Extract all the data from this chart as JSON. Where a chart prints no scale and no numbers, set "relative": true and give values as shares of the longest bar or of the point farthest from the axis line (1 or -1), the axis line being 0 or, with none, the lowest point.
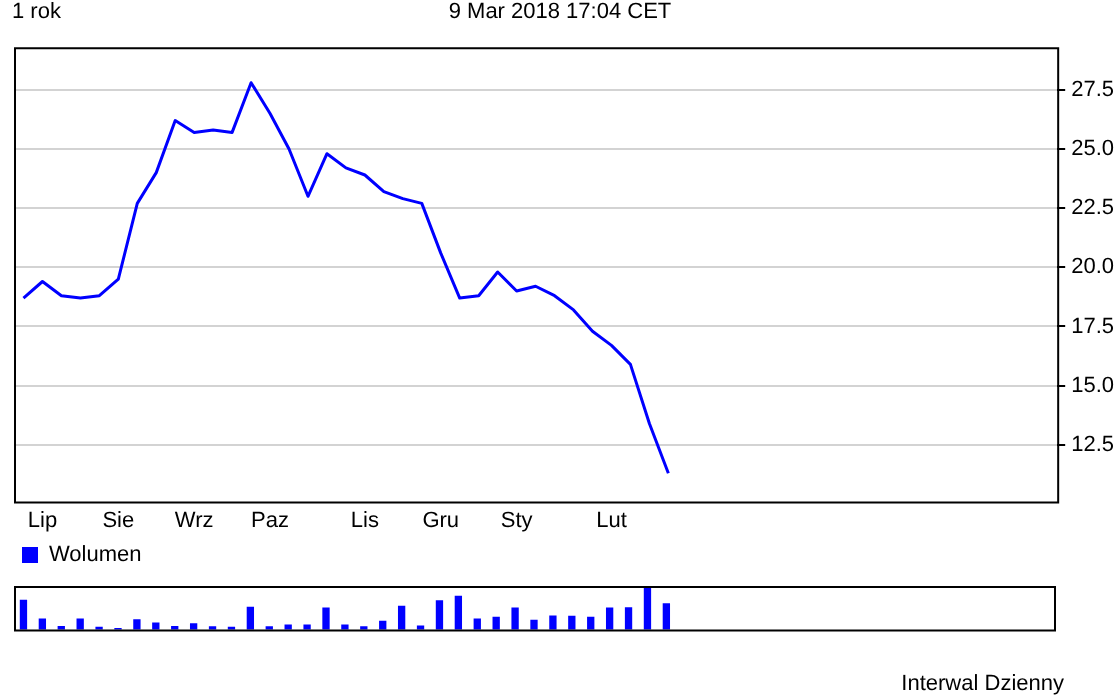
{
  "chart_data": [
    {
      "type": "line",
      "title": "1 rok",
      "subtitle": "9 Mar 2018 17:04 CET",
      "categories": [
        null,
        "Lip",
        null,
        null,
        null,
        "Sie",
        null,
        null,
        null,
        "Wrz",
        null,
        null,
        null,
        "Paz",
        null,
        null,
        null,
        null,
        "Lis",
        null,
        null,
        null,
        "Gru",
        null,
        null,
        null,
        "Sty",
        null,
        null,
        null,
        null,
        "Lut",
        null,
        null,
        null,
        null,
        null,
        null,
        null,
        null,
        null,
        null,
        null,
        null,
        null,
        null,
        null,
        null,
        null,
        null,
        null,
        null,
        null,
        null,
        null
      ],
      "series": [
        {
          "color": "#0000ff",
          "values": [
            18.7,
            19.4,
            18.8,
            18.7,
            18.8,
            19.5,
            22.7,
            24.0,
            26.2,
            25.7,
            25.8,
            25.7,
            27.8,
            26.5,
            25.0,
            23.0,
            24.8,
            24.2,
            23.9,
            23.2,
            22.9,
            22.7,
            20.6,
            18.7,
            18.8,
            19.8,
            19.0,
            19.2,
            18.8,
            18.2,
            17.3,
            16.7,
            15.9,
            13.4,
            11.3,
            null,
            null,
            null,
            null,
            null,
            null,
            null,
            null,
            null,
            null,
            null,
            null,
            null,
            null,
            null,
            null,
            null,
            null,
            null,
            null
          ]
        }
      ],
      "ylim": [
        10.1,
        29.3
      ],
      "yticks": [
        {
          "value": 12.5,
          "label": "12.5"
        },
        {
          "value": 15,
          "label": "15.0"
        },
        {
          "value": 17.5,
          "label": "17.5"
        },
        {
          "value": 20,
          "label": "20.0"
        },
        {
          "value": 22.5,
          "label": "22.5"
        },
        {
          "value": 25,
          "label": "25.0"
        },
        {
          "value": 27.5,
          "label": "27.5"
        }
      ],
      "grid": "y",
      "marker": "none",
      "line_style": "solid"
    },
    {
      "type": "bar",
      "relative": true,
      "legend": "top left",
      "annotations": [
        "Interwal Dzienny"
      ],
      "categories": [
        null,
        null,
        null,
        null,
        null,
        null,
        null,
        null,
        null,
        null,
        null,
        null,
        null,
        null,
        null,
        null,
        null,
        null,
        null,
        null,
        null,
        null,
        null,
        null,
        null,
        null,
        null,
        null,
        null,
        null,
        null,
        null,
        null,
        null,
        null,
        null,
        null,
        null,
        null,
        null,
        null,
        null,
        null,
        null,
        null,
        null,
        null,
        null,
        null,
        null,
        null,
        null,
        null,
        null,
        null
      ],
      "series": [
        {
          "name": "Wolumen",
          "color": "#0000ff",
          "values": [
            0.67,
            0.24,
            0.07,
            0.24,
            0.05,
            0.02,
            0.22,
            0.15,
            0.07,
            0.13,
            0.06,
            0.05,
            0.51,
            0.06,
            0.1,
            0.1,
            0.49,
            0.1,
            0.06,
            0.19,
            0.53,
            0.08,
            0.66,
            0.76,
            0.24,
            0.28,
            0.49,
            0.21,
            0.31,
            0.3,
            0.28,
            0.49,
            0.5,
            1.0,
            0.59,
            null,
            null,
            null,
            null,
            null,
            null,
            null,
            null,
            null,
            null,
            null,
            null,
            null,
            null,
            null,
            null,
            null,
            null,
            null,
            null
          ]
        }
      ]
    }
  ]
}
